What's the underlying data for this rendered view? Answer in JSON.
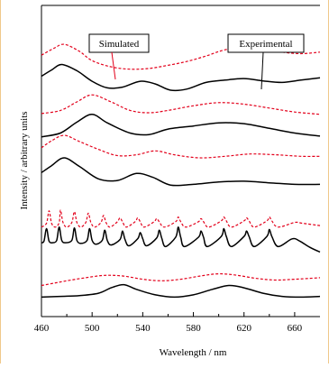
{
  "chart_data": {
    "type": "line",
    "xlabel": "Wavelength / nm",
    "ylabel": "Intensity / arbitrary units",
    "xlim": [
      460,
      680
    ],
    "xticks": [
      "460",
      "500",
      "540",
      "580",
      "620",
      "660"
    ],
    "yticks": [],
    "grid": false,
    "legend": [
      {
        "label": "Simulated",
        "color": "#e3001b",
        "style": "dashed"
      },
      {
        "label": "Experimental",
        "color": "#000000",
        "style": "solid"
      }
    ],
    "series": [
      {
        "label": "Simulated",
        "trace": 1,
        "color": "#e3001b",
        "style": "dashed",
        "x": [
          460,
          470,
          478,
          490,
          500,
          515,
          530,
          545,
          560,
          575,
          590,
          605,
          620,
          635,
          650,
          665,
          680
        ],
        "y": [
          6.72,
          6.9,
          7.0,
          6.82,
          6.58,
          6.42,
          6.36,
          6.38,
          6.46,
          6.56,
          6.7,
          6.86,
          6.92,
          6.88,
          6.8,
          6.76,
          6.8
        ]
      },
      {
        "label": "Experimental",
        "trace": 1,
        "color": "#000000",
        "style": "solid",
        "x": [
          460,
          468,
          476,
          488,
          500,
          512,
          524,
          538,
          550,
          562,
          575,
          590,
          605,
          620,
          635,
          650,
          665,
          680
        ],
        "y": [
          6.18,
          6.34,
          6.48,
          6.32,
          6.05,
          5.88,
          5.9,
          6.05,
          5.98,
          5.82,
          5.85,
          6.02,
          6.08,
          6.12,
          6.06,
          6.02,
          6.08,
          6.14
        ]
      },
      {
        "label": "Simulated",
        "trace": 2,
        "color": "#e3001b",
        "style": "dashed",
        "x": [
          460,
          475,
          488,
          500,
          515,
          530,
          545,
          560,
          580,
          600,
          620,
          640,
          660,
          680
        ],
        "y": [
          5.22,
          5.3,
          5.52,
          5.7,
          5.52,
          5.3,
          5.24,
          5.3,
          5.42,
          5.5,
          5.46,
          5.36,
          5.26,
          5.2
        ]
      },
      {
        "label": "Experimental",
        "trace": 2,
        "color": "#000000",
        "style": "solid",
        "x": [
          460,
          475,
          488,
          500,
          512,
          530,
          545,
          560,
          580,
          600,
          620,
          640,
          660,
          680
        ],
        "y": [
          4.62,
          4.72,
          5.0,
          5.2,
          4.98,
          4.72,
          4.68,
          4.82,
          4.9,
          4.98,
          4.96,
          4.84,
          4.72,
          4.64
        ]
      },
      {
        "label": "Simulated",
        "trace": 3,
        "color": "#e3001b",
        "style": "dashed",
        "x": [
          460,
          468,
          478,
          490,
          505,
          520,
          535,
          550,
          565,
          585,
          605,
          625,
          645,
          665,
          680
        ],
        "y": [
          4.34,
          4.52,
          4.66,
          4.5,
          4.3,
          4.14,
          4.16,
          4.26,
          4.16,
          4.08,
          4.12,
          4.18,
          4.16,
          4.12,
          4.12
        ]
      },
      {
        "label": "Experimental",
        "trace": 3,
        "color": "#000000",
        "style": "solid",
        "x": [
          460,
          468,
          478,
          490,
          505,
          520,
          535,
          548,
          562,
          580,
          600,
          620,
          640,
          660,
          680
        ],
        "y": [
          3.7,
          3.88,
          4.08,
          3.86,
          3.54,
          3.5,
          3.68,
          3.58,
          3.38,
          3.4,
          3.46,
          3.48,
          3.44,
          3.4,
          3.4
        ]
      },
      {
        "label": "Simulated",
        "trace": 4,
        "color": "#e3001b",
        "style": "dashed",
        "x": [
          460,
          464,
          466,
          468,
          471,
          474,
          475,
          477,
          480,
          484,
          486,
          488,
          491,
          495,
          497,
          499,
          502,
          507,
          509,
          511,
          514,
          520,
          522,
          524,
          527,
          534,
          536,
          538,
          541,
          549,
          551,
          553,
          557,
          566,
          568,
          570,
          574,
          584,
          586,
          588,
          592,
          602,
          604,
          606,
          610,
          620,
          622,
          624,
          628,
          638,
          640,
          642,
          647,
          660,
          666,
          680
        ],
        "y": [
          2.3,
          2.4,
          2.72,
          2.4,
          2.3,
          2.42,
          2.74,
          2.42,
          2.3,
          2.42,
          2.7,
          2.42,
          2.3,
          2.42,
          2.66,
          2.42,
          2.3,
          2.42,
          2.6,
          2.42,
          2.3,
          2.44,
          2.54,
          2.44,
          2.3,
          2.44,
          2.54,
          2.44,
          2.3,
          2.44,
          2.52,
          2.44,
          2.3,
          2.44,
          2.56,
          2.44,
          2.3,
          2.44,
          2.52,
          2.44,
          2.3,
          2.46,
          2.56,
          2.46,
          2.3,
          2.46,
          2.54,
          2.46,
          2.3,
          2.46,
          2.56,
          2.46,
          2.3,
          2.42,
          2.4,
          2.34
        ]
      },
      {
        "label": "Experimental",
        "trace": 4,
        "color": "#000000",
        "style": "solid",
        "x": [
          460,
          462,
          464,
          466,
          469,
          472,
          474,
          476,
          479,
          484,
          486,
          488,
          491,
          496,
          498,
          500,
          503,
          508,
          510,
          512,
          515,
          522,
          524,
          526,
          529,
          536,
          538,
          540,
          543,
          551,
          553,
          555,
          558,
          566,
          568,
          570,
          573,
          584,
          586,
          588,
          591,
          602,
          604,
          606,
          610,
          620,
          622,
          624,
          628,
          638,
          640,
          642,
          647,
          658,
          664,
          672,
          680
        ],
        "y": [
          1.9,
          1.94,
          2.26,
          1.94,
          1.9,
          1.96,
          2.3,
          1.96,
          1.9,
          1.96,
          2.28,
          1.96,
          1.88,
          1.96,
          2.26,
          1.96,
          1.86,
          1.96,
          2.22,
          1.96,
          1.84,
          1.98,
          2.2,
          1.98,
          1.82,
          2.0,
          2.16,
          2.0,
          1.82,
          2.02,
          2.22,
          2.02,
          1.8,
          2.04,
          2.3,
          2.04,
          1.8,
          2.04,
          2.2,
          2.04,
          1.8,
          2.06,
          2.26,
          2.06,
          1.8,
          2.06,
          2.2,
          2.06,
          1.8,
          2.06,
          2.24,
          2.06,
          1.8,
          2.0,
          1.94,
          1.78,
          1.66
        ]
      },
      {
        "label": "Simulated",
        "trace": 5,
        "color": "#e3001b",
        "style": "dashed",
        "x": [
          460,
          470,
          480,
          495,
          510,
          525,
          540,
          555,
          570,
          585,
          600,
          615,
          630,
          645,
          660,
          680
        ],
        "y": [
          0.8,
          0.86,
          0.92,
          1.0,
          1.06,
          1.04,
          0.96,
          0.92,
          0.96,
          1.04,
          1.1,
          1.06,
          0.98,
          0.94,
          0.96,
          1.0
        ]
      },
      {
        "label": "Experimental",
        "trace": 5,
        "color": "#000000",
        "style": "solid",
        "x": [
          460,
          475,
          490,
          505,
          515,
          525,
          535,
          550,
          565,
          580,
          595,
          608,
          620,
          635,
          650,
          665,
          680
        ],
        "y": [
          0.5,
          0.52,
          0.54,
          0.6,
          0.74,
          0.82,
          0.7,
          0.56,
          0.5,
          0.56,
          0.7,
          0.8,
          0.74,
          0.6,
          0.52,
          0.5,
          0.52
        ]
      }
    ]
  }
}
